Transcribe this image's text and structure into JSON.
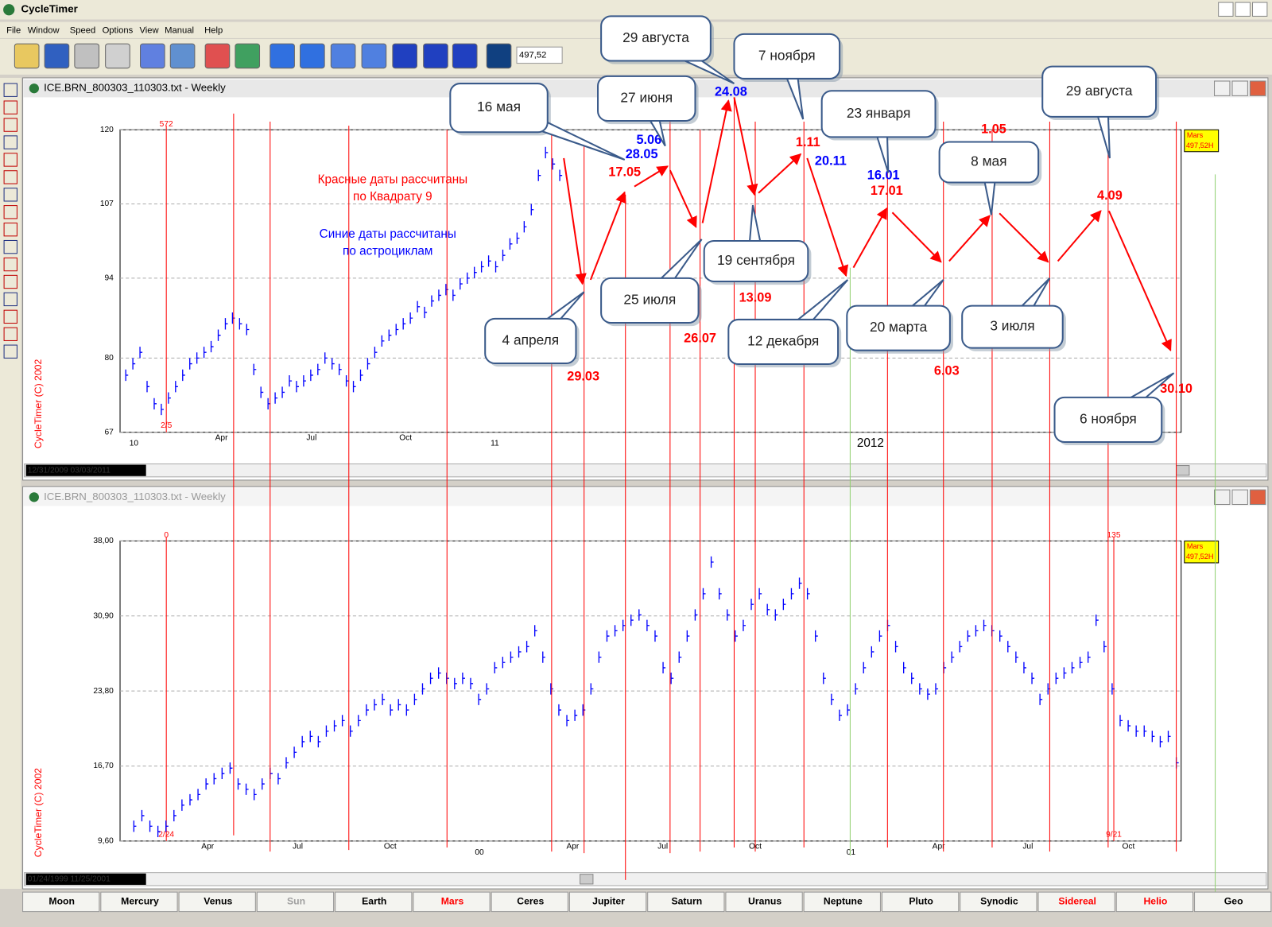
{
  "window": {
    "title": "CycleTimer"
  },
  "menu": [
    "File",
    "Window",
    "Speed",
    "Options",
    "View",
    "Manual",
    "Help"
  ],
  "toolbar": {
    "value": "497,52"
  },
  "panes": [
    {
      "title": "ICE.BRN_800303_110303.txt - Weekly",
      "copyright": "CycleTimer (C) 2002",
      "range": "12/31/2009 03/03/2011",
      "top_marker": "572",
      "bottom_marker": "2/5",
      "badge_name": "Mars",
      "badge_value": "497,52H",
      "x_labels": [
        "10",
        "Apr",
        "Jul",
        "Oct",
        "11"
      ],
      "year_label": "2012"
    },
    {
      "title": "ICE.BRN_800303_110303.txt - Weekly",
      "copyright": "CycleTimer (C) 2002",
      "range": "01/24/1999 11/25/2001",
      "top_marker": "0",
      "bottom_marker": "2/24",
      "top_marker_2": "135",
      "bottom_marker_2": "9/21",
      "badge_name": "Mars",
      "badge_value": "497,52H",
      "x_labels": [
        "Apr",
        "Jul",
        "Oct",
        "00",
        "Apr",
        "Jul",
        "Oct",
        "01",
        "Apr",
        "Jul",
        "Oct"
      ]
    }
  ],
  "chart_data": [
    {
      "type": "price_bar",
      "color": "#0000ff",
      "grid": true,
      "ylim": [
        67,
        120
      ],
      "yticks": [
        67,
        80,
        94,
        107,
        120
      ],
      "values": [
        77,
        79,
        81,
        75,
        72,
        71,
        73,
        75,
        77,
        79,
        80,
        81,
        82,
        84,
        86,
        87,
        86,
        85,
        78,
        74,
        72,
        73,
        74,
        76,
        75,
        76,
        77,
        78,
        80,
        79,
        78,
        76,
        75,
        77,
        79,
        81,
        83,
        84,
        85,
        86,
        87,
        89,
        88,
        90,
        91,
        92,
        91,
        93,
        94,
        95,
        96,
        97,
        96,
        98,
        100,
        101,
        103,
        106,
        112,
        116,
        114,
        112
      ]
    },
    {
      "type": "price_bar",
      "color": "#0000ff",
      "grid": true,
      "ylim": [
        9.6,
        38
      ],
      "yticks": [
        {
          "value": 9.6,
          "label": "9,60"
        },
        {
          "value": 16.7,
          "label": "16,70"
        },
        {
          "value": 23.8,
          "label": "23,80"
        },
        {
          "value": 30.9,
          "label": "30,90"
        },
        {
          "value": 38,
          "label": "38,00"
        }
      ],
      "values": [
        11,
        12,
        11,
        10.5,
        11,
        12,
        13,
        13.5,
        14,
        15,
        15.5,
        16,
        16.5,
        15,
        14.5,
        14,
        15,
        16,
        15.5,
        17,
        18,
        19,
        19.5,
        19,
        20,
        20.5,
        21,
        20,
        21,
        22,
        22.5,
        23,
        22,
        22.5,
        22,
        23,
        24,
        25,
        25.5,
        25,
        24.5,
        25,
        24.5,
        23,
        24,
        26,
        26.5,
        27,
        27.5,
        28,
        29.5,
        27,
        24,
        22,
        21,
        21.5,
        22,
        24,
        27,
        29,
        29.5,
        30,
        30.5,
        31,
        30,
        29,
        26,
        25,
        27,
        29,
        31,
        33,
        36,
        33,
        31,
        29,
        30,
        32,
        33,
        31.5,
        31,
        32,
        33,
        34,
        33,
        29,
        25,
        23,
        21.5,
        22,
        24,
        26,
        27.5,
        29,
        30,
        28,
        26,
        25,
        24,
        23.5,
        24,
        26,
        27,
        28,
        29,
        29.5,
        30,
        29.5,
        29,
        28,
        27,
        26,
        25,
        23,
        24,
        25,
        25.5,
        26,
        26.5,
        27,
        30.5,
        28,
        24,
        21,
        20.5,
        20,
        20,
        19.5,
        19,
        19.5,
        17
      ]
    }
  ],
  "notes": {
    "red": [
      "Красные даты рассчитаны",
      "по Квадрату 9"
    ],
    "blue": [
      "Синие даты рассчитаны",
      "по астроциклам"
    ],
    "red_color": "#ff0000",
    "blue_color": "#0000ff"
  },
  "dates": [
    {
      "text": "29.03",
      "color": "#ff0000"
    },
    {
      "text": "17.05",
      "color": "#ff0000"
    },
    {
      "text": "26.07",
      "color": "#ff0000"
    },
    {
      "text": "13.09",
      "color": "#ff0000"
    },
    {
      "text": "1.11",
      "color": "#ff0000"
    },
    {
      "text": "17.01",
      "color": "#ff0000"
    },
    {
      "text": "6.03",
      "color": "#ff0000"
    },
    {
      "text": "1.05",
      "color": "#ff0000"
    },
    {
      "text": "4.09",
      "color": "#ff0000"
    },
    {
      "text": "30.10",
      "color": "#ff0000"
    },
    {
      "text": "5.06",
      "color": "#0000ff"
    },
    {
      "text": "28.05",
      "color": "#0000ff"
    },
    {
      "text": "24.08",
      "color": "#0000ff"
    },
    {
      "text": "20.11",
      "color": "#0000ff"
    },
    {
      "text": "16.01",
      "color": "#0000ff"
    }
  ],
  "callouts": [
    "16 мая",
    "29 августа",
    "27 июня",
    "7 ноября",
    "23 января",
    "29 августа",
    "8 мая",
    "19 сентября",
    "25 июля",
    "4 апреля",
    "12 декабря",
    "20 марта",
    "3 июля",
    "6 ноября"
  ],
  "tabs": [
    {
      "text": "Moon",
      "color": "#000000"
    },
    {
      "text": "Mercury",
      "color": "#000000"
    },
    {
      "text": "Venus",
      "color": "#000000"
    },
    {
      "text": "Sun",
      "color": "#a0a0a0"
    },
    {
      "text": "Earth",
      "color": "#000000"
    },
    {
      "text": "Mars",
      "color": "#ff0000"
    },
    {
      "text": "Ceres",
      "color": "#000000"
    },
    {
      "text": "Jupiter",
      "color": "#000000"
    },
    {
      "text": "Saturn",
      "color": "#000000"
    },
    {
      "text": "Uranus",
      "color": "#000000"
    },
    {
      "text": "Neptune",
      "color": "#000000"
    },
    {
      "text": "Pluto",
      "color": "#000000"
    },
    {
      "text": "Synodic",
      "color": "#000000"
    },
    {
      "text": "Sidereal",
      "color": "#ff0000"
    },
    {
      "text": "Helio",
      "color": "#ff0000"
    },
    {
      "text": "Geo",
      "color": "#000000"
    }
  ]
}
